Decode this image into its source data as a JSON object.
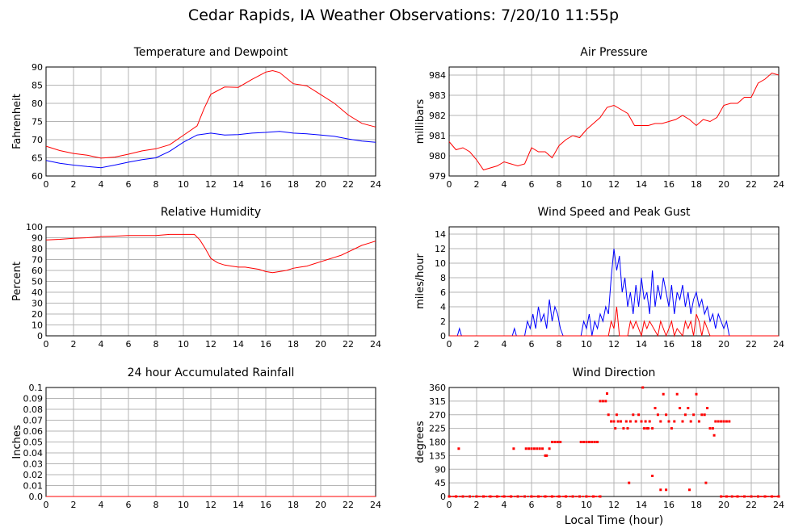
{
  "title": "Cedar Rapids, IA Weather Observations: 7/20/10 11:55p",
  "colors": {
    "red": "#ff0000",
    "blue": "#0000ff",
    "grid": "#b4b4b4",
    "frame": "#000000"
  },
  "chart_data": [
    {
      "type": "line",
      "title": "Temperature and Dewpoint",
      "ylabel": "Fahrenheit",
      "xlabel": "",
      "xlim": [
        0,
        24
      ],
      "ylim": [
        60,
        90
      ],
      "x_ticks": [
        0,
        2,
        4,
        6,
        8,
        10,
        12,
        14,
        16,
        18,
        20,
        22,
        24
      ],
      "y_ticks": [
        60,
        65,
        70,
        75,
        80,
        85,
        90
      ],
      "grid": true,
      "series": [
        {
          "color": "#ff0000",
          "x": [
            0,
            1,
            2,
            3,
            4,
            5,
            6,
            7,
            8,
            9,
            10,
            11,
            11.5,
            12,
            13,
            14,
            15,
            16,
            16.5,
            17,
            18,
            19,
            20,
            21,
            22,
            23,
            24
          ],
          "values": [
            68.2,
            67.0,
            66.2,
            65.7,
            64.9,
            65.2,
            66.0,
            66.9,
            67.5,
            68.6,
            71.2,
            73.8,
            78.5,
            82.5,
            84.5,
            84.4,
            86.6,
            88.6,
            89.0,
            88.5,
            85.4,
            84.8,
            82.4,
            80.0,
            76.8,
            74.5,
            73.5
          ]
        },
        {
          "color": "#0000ff",
          "x": [
            0,
            1,
            2,
            3,
            4,
            5,
            6,
            7,
            8,
            9,
            10,
            11,
            12,
            13,
            14,
            15,
            16,
            17,
            18,
            19,
            20,
            21,
            22,
            23,
            24
          ],
          "values": [
            64.3,
            63.5,
            63.0,
            62.6,
            62.3,
            63.0,
            63.8,
            64.5,
            65.0,
            66.8,
            69.3,
            71.3,
            71.8,
            71.3,
            71.4,
            71.8,
            72.0,
            72.3,
            71.8,
            71.6,
            71.3,
            70.9,
            70.2,
            69.6,
            69.3
          ]
        }
      ]
    },
    {
      "type": "line",
      "title": "Air Pressure",
      "ylabel": "millibars",
      "xlabel": "",
      "xlim": [
        0,
        24
      ],
      "ylim": [
        979,
        984.4
      ],
      "x_ticks": [
        0,
        2,
        4,
        6,
        8,
        10,
        12,
        14,
        16,
        18,
        20,
        22,
        24
      ],
      "y_ticks": [
        979,
        980,
        981,
        982,
        983,
        984
      ],
      "grid": true,
      "series": [
        {
          "color": "#ff0000",
          "x": [
            0,
            0.5,
            1,
            1.5,
            2,
            2.5,
            3,
            3.5,
            4,
            4.5,
            5,
            5.5,
            6,
            6.5,
            7,
            7.5,
            8,
            8.5,
            9,
            9.5,
            10,
            10.5,
            11,
            11.5,
            12,
            12.5,
            13,
            13.5,
            14,
            14.5,
            15,
            15.5,
            16,
            16.5,
            17,
            17.5,
            18,
            18.5,
            19,
            19.5,
            20,
            20.5,
            21,
            21.5,
            22,
            22.5,
            23,
            23.5,
            24
          ],
          "values": [
            980.7,
            980.3,
            980.4,
            980.2,
            979.8,
            979.3,
            979.4,
            979.5,
            979.7,
            979.6,
            979.5,
            979.6,
            980.4,
            980.2,
            980.2,
            979.9,
            980.5,
            980.8,
            981.0,
            980.9,
            981.3,
            981.6,
            981.9,
            982.4,
            982.5,
            982.3,
            982.1,
            981.5,
            981.5,
            981.5,
            981.6,
            981.6,
            981.7,
            981.8,
            982.0,
            981.8,
            981.5,
            981.8,
            981.7,
            981.9,
            982.5,
            982.6,
            982.6,
            982.9,
            982.9,
            983.6,
            983.8,
            984.1,
            984.0
          ]
        }
      ]
    },
    {
      "type": "line",
      "title": "Relative Humidity",
      "ylabel": "Percent",
      "xlabel": "",
      "xlim": [
        0,
        24
      ],
      "ylim": [
        0,
        100
      ],
      "x_ticks": [
        0,
        2,
        4,
        6,
        8,
        10,
        12,
        14,
        16,
        18,
        20,
        22,
        24
      ],
      "y_ticks": [
        0,
        10,
        20,
        30,
        40,
        50,
        60,
        70,
        80,
        90,
        100
      ],
      "grid": true,
      "series": [
        {
          "color": "#ff0000",
          "x": [
            0,
            1,
            2,
            3,
            4,
            5,
            6,
            7,
            8,
            9,
            10,
            10.8,
            11.2,
            11.6,
            12,
            12.5,
            13,
            13.5,
            14,
            14.5,
            15,
            15.5,
            16,
            16.5,
            17,
            17.5,
            18,
            18.5,
            19,
            19.5,
            20,
            20.5,
            21,
            21.5,
            22,
            22.5,
            23,
            23.5,
            24
          ],
          "values": [
            88,
            88.5,
            89.5,
            90,
            91,
            91.5,
            92,
            92,
            92,
            93,
            93,
            93,
            88,
            80,
            71,
            67,
            65,
            64,
            63,
            63,
            62,
            61,
            59,
            58,
            59,
            60,
            62,
            63,
            64,
            66,
            68,
            70,
            72,
            74,
            77,
            80,
            83,
            85,
            87
          ]
        }
      ]
    },
    {
      "type": "line",
      "title": "Wind Speed and Peak Gust",
      "ylabel": "miles/hour",
      "xlabel": "",
      "xlim": [
        0,
        24
      ],
      "ylim": [
        0,
        15
      ],
      "x_ticks": [
        0,
        2,
        4,
        6,
        8,
        10,
        12,
        14,
        16,
        18,
        20,
        22,
        24
      ],
      "y_ticks": [
        0,
        2,
        4,
        6,
        8,
        10,
        12,
        14
      ],
      "grid": true,
      "series": [
        {
          "color": "#0000ff",
          "x": [
            0,
            0.6,
            0.75,
            0.9,
            4.6,
            4.75,
            4.9,
            5.5,
            5.7,
            5.9,
            6.1,
            6.3,
            6.5,
            6.7,
            6.9,
            7.1,
            7.3,
            7.5,
            7.7,
            7.9,
            8.1,
            8.3,
            9.6,
            9.8,
            10.0,
            10.2,
            10.4,
            10.6,
            10.8,
            11.0,
            11.2,
            11.4,
            11.6,
            11.8,
            12.0,
            12.2,
            12.4,
            12.6,
            12.8,
            13.0,
            13.2,
            13.4,
            13.6,
            13.8,
            14.0,
            14.2,
            14.4,
            14.6,
            14.8,
            15.0,
            15.2,
            15.4,
            15.6,
            15.8,
            16.0,
            16.2,
            16.4,
            16.6,
            16.8,
            17.0,
            17.2,
            17.4,
            17.6,
            17.8,
            18.0,
            18.2,
            18.4,
            18.6,
            18.8,
            19.0,
            19.2,
            19.4,
            19.6,
            19.8,
            20.0,
            20.2,
            20.4,
            20.6,
            24
          ],
          "values": [
            0,
            0,
            1,
            0,
            0,
            1,
            0,
            0,
            2,
            1,
            3,
            1,
            4,
            2,
            3,
            1,
            5,
            2,
            4,
            3,
            1,
            0,
            0,
            2,
            1,
            3,
            0,
            2,
            1,
            3,
            2,
            4,
            3,
            8,
            12,
            9,
            11,
            6,
            8,
            4,
            6,
            3,
            7,
            4,
            8,
            5,
            6,
            3,
            9,
            4,
            7,
            5,
            8,
            6,
            4,
            7,
            3,
            6,
            5,
            7,
            4,
            6,
            3,
            5,
            6,
            4,
            5,
            3,
            4,
            2,
            3,
            1,
            3,
            2,
            1,
            2,
            0,
            0,
            0
          ]
        },
        {
          "color": "#ff0000",
          "x": [
            0,
            11.6,
            11.8,
            12.0,
            12.2,
            12.4,
            12.6,
            13.0,
            13.2,
            13.4,
            13.6,
            14.0,
            14.2,
            14.4,
            14.6,
            15.2,
            15.4,
            15.6,
            15.8,
            16.0,
            16.2,
            16.4,
            16.6,
            17.0,
            17.2,
            17.4,
            17.6,
            17.8,
            18.0,
            18.2,
            18.4,
            18.6,
            18.8,
            19.0,
            19.2,
            19.6,
            24
          ],
          "values": [
            0,
            0,
            2,
            1,
            4,
            0,
            0,
            0,
            2,
            1,
            2,
            0,
            2,
            1,
            2,
            0,
            2,
            1,
            0,
            1,
            2,
            0,
            1,
            0,
            2,
            1,
            2,
            0,
            3,
            2,
            0,
            2,
            1,
            0,
            0,
            0,
            0
          ]
        }
      ]
    },
    {
      "type": "line",
      "title": "24 hour Accumulated Rainfall",
      "ylabel": "Inches",
      "xlabel": "",
      "xlim": [
        0,
        24
      ],
      "ylim": [
        0,
        0.1
      ],
      "x_ticks": [
        0,
        2,
        4,
        6,
        8,
        10,
        12,
        14,
        16,
        18,
        20,
        22,
        24
      ],
      "y_ticks": [
        0.0,
        0.01,
        0.02,
        0.03,
        0.04,
        0.05,
        0.06,
        0.07,
        0.08,
        0.09,
        0.1
      ],
      "y_tick_labels": [
        "0.0",
        "0.01",
        "0.02",
        "0.03",
        "0.04",
        "0.05",
        "0.06",
        "0.07",
        "0.08",
        "0.09",
        "0.1"
      ],
      "grid": true,
      "series": [
        {
          "color": "#ff0000",
          "x": [
            0,
            24
          ],
          "values": [
            0,
            0
          ]
        }
      ]
    },
    {
      "type": "scatter",
      "title": "Wind Direction",
      "ylabel": "degrees",
      "xlabel": "Local Time (hour)",
      "xlim": [
        0,
        24
      ],
      "ylim": [
        0,
        360
      ],
      "x_ticks": [
        0,
        2,
        4,
        6,
        8,
        10,
        12,
        14,
        16,
        18,
        20,
        22,
        24
      ],
      "y_ticks": [
        0,
        45,
        90,
        135,
        180,
        225,
        270,
        315,
        360
      ],
      "grid": true,
      "series": [
        {
          "color": "#ff0000",
          "x": [
            0.7,
            4.7,
            5.6,
            5.8,
            6.0,
            6.2,
            6.4,
            6.6,
            6.8,
            7.0,
            7.1,
            7.3,
            7.5,
            7.7,
            7.9,
            8.1,
            9.6,
            9.8,
            10.0,
            10.2,
            10.4,
            10.6,
            10.8,
            11.0,
            11.2,
            11.4,
            11.5,
            11.6,
            11.8,
            12.0,
            12.1,
            12.2,
            12.3,
            12.5,
            12.7,
            12.9,
            13.0,
            13.2,
            13.4,
            13.6,
            13.8,
            14.0,
            14.1,
            14.2,
            14.3,
            14.4,
            14.5,
            14.6,
            14.8,
            15.0,
            15.2,
            15.4,
            15.6,
            15.8,
            16.0,
            16.2,
            16.4,
            16.6,
            16.8,
            17.0,
            17.2,
            17.4,
            17.6,
            17.8,
            18.0,
            18.2,
            18.4,
            18.6,
            18.8,
            19.0,
            19.2,
            19.4,
            19.6,
            19.8,
            20.0,
            20.2,
            20.4,
            13.1,
            14.8,
            15.4,
            15.8,
            17.5,
            18.7,
            19.3
          ],
          "values": [
            158,
            158,
            158,
            158,
            158,
            158,
            158,
            158,
            158,
            135,
            135,
            158,
            180,
            180,
            180,
            180,
            180,
            180,
            180,
            180,
            180,
            180,
            180,
            315,
            315,
            315,
            340,
            270,
            248,
            248,
            225,
            270,
            248,
            248,
            225,
            248,
            225,
            248,
            270,
            248,
            270,
            248,
            360,
            225,
            248,
            225,
            225,
            248,
            225,
            292,
            270,
            248,
            338,
            270,
            248,
            225,
            248,
            338,
            292,
            248,
            270,
            292,
            248,
            270,
            338,
            248,
            270,
            270,
            292,
            225,
            225,
            248,
            248,
            248,
            248,
            248,
            248,
            45,
            68,
            22,
            22,
            22,
            45,
            202
          ]
        },
        {
          "color": "#ff0000",
          "x": [
            0,
            0.5,
            1,
            1.5,
            2,
            2.5,
            3,
            3.5,
            4,
            4.5,
            5,
            5.5,
            6,
            6.5,
            7,
            7.5,
            8,
            8.5,
            9,
            9.5,
            10,
            10.5,
            11,
            19.8,
            20.2,
            20.6,
            21,
            21.5,
            22,
            22.5,
            23,
            23.5,
            24
          ],
          "values": [
            0,
            0,
            0,
            0,
            0,
            0,
            0,
            0,
            0,
            0,
            0,
            0,
            0,
            0,
            0,
            0,
            0,
            0,
            0,
            0,
            0,
            0,
            0,
            0,
            0,
            0,
            0,
            0,
            0,
            0,
            0,
            0,
            0
          ]
        }
      ]
    }
  ]
}
